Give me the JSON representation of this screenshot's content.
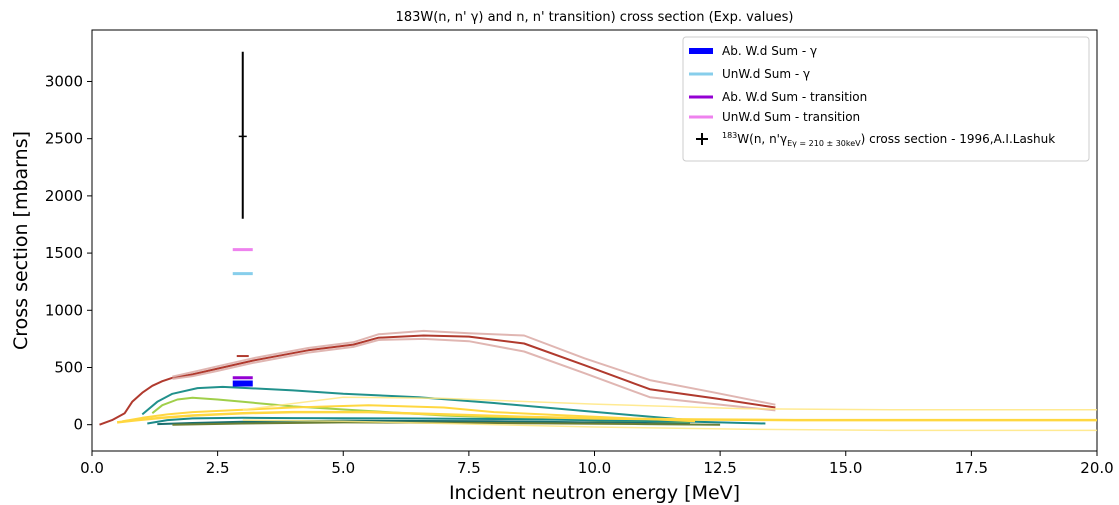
{
  "chart_data": {
    "type": "line",
    "title": "183W(n, n' γ) and n, n' transition) cross section (Exp. values)",
    "xlabel": "Incident neutron energy [MeV]",
    "ylabel": "Cross section [mbarns]",
    "xlim": [
      0,
      20
    ],
    "ylim": [
      -230,
      3450
    ],
    "xticks": [
      0.0,
      2.5,
      5.0,
      7.5,
      10.0,
      12.5,
      15.0,
      17.5,
      20.0
    ],
    "xtick_labels": [
      "0.0",
      "2.5",
      "5.0",
      "7.5",
      "10.0",
      "12.5",
      "15.0",
      "17.5",
      "20.0"
    ],
    "yticks": [
      0,
      500,
      1000,
      1500,
      2000,
      2500,
      3000
    ],
    "ytick_labels": [
      "0",
      "500",
      "1000",
      "1500",
      "2000",
      "2500",
      "3000"
    ],
    "grid": false,
    "legend_position": "top-right",
    "legend": [
      {
        "kind": "bar",
        "label": "Ab. W.d Sum - γ",
        "color": "#0000ff"
      },
      {
        "kind": "line",
        "label": "UnW.d Sum - γ",
        "color": "#87ceeb"
      },
      {
        "kind": "line",
        "label": "Ab. W.d Sum - transition",
        "color": "#9400d3"
      },
      {
        "kind": "line",
        "label": "UnW.d Sum - transition",
        "color": "#ee82ee"
      },
      {
        "kind": "marker",
        "label_prefix": "183",
        "label_main": "W(n, n'γ",
        "label_sub": "Eγ = 210 ± 30keV",
        "label_suffix": ") cross section - 1996,A.I.Lashuk",
        "color": "#000000"
      }
    ],
    "markers": [
      {
        "name": "ab-wd-sum-gamma",
        "x": 3.0,
        "y": 360,
        "color": "#0000ff",
        "thickness": "thick"
      },
      {
        "name": "unwd-sum-gamma",
        "x": 3.0,
        "y": 1320,
        "color": "#87ceeb",
        "thickness": "normal"
      },
      {
        "name": "ab-wd-sum-transition",
        "x": 3.0,
        "y": 410,
        "color": "#9400d3",
        "thickness": "normal"
      },
      {
        "name": "unwd-sum-transition",
        "x": 3.0,
        "y": 1530,
        "color": "#ee82ee",
        "thickness": "normal"
      },
      {
        "name": "brown-marker",
        "x": 3.0,
        "y": 600,
        "color": "#b03a2e",
        "thickness": "thin"
      }
    ],
    "errorbars": [
      {
        "name": "lashuk-1996",
        "x": 3.0,
        "y": 2520,
        "ylow": 1800,
        "yhigh": 3260,
        "color": "#000000"
      }
    ],
    "series": [
      {
        "color": "#b03a2e",
        "width": 2,
        "opacity": 1,
        "x": [
          0.15,
          0.4,
          0.65,
          0.8,
          1.0,
          1.2,
          1.4,
          1.6,
          2.0,
          2.5,
          3.2,
          4.3,
          5.2,
          5.7,
          6.6,
          7.5,
          8.6,
          9.8,
          11.1,
          12.4,
          13.6
        ],
        "y": [
          0,
          40,
          100,
          200,
          280,
          340,
          380,
          410,
          440,
          490,
          560,
          650,
          700,
          760,
          780,
          770,
          710,
          520,
          310,
          230,
          150
        ]
      },
      {
        "color": "#dba9a4",
        "width": 2,
        "opacity": 0.85,
        "x": [
          1.6,
          2.0,
          2.5,
          3.2,
          4.3,
          5.2,
          5.7,
          6.6,
          7.5,
          8.6,
          9.8,
          11.1,
          12.4,
          13.6
        ],
        "y": [
          420,
          460,
          510,
          580,
          670,
          720,
          790,
          820,
          800,
          780,
          580,
          390,
          280,
          175
        ]
      },
      {
        "color": "#dba9a4",
        "width": 2,
        "opacity": 0.85,
        "x": [
          1.6,
          2.0,
          2.5,
          3.2,
          4.3,
          5.2,
          5.7,
          6.6,
          7.5,
          8.6,
          9.8,
          11.1,
          12.4,
          13.6
        ],
        "y": [
          400,
          425,
          470,
          540,
          630,
          680,
          740,
          750,
          730,
          640,
          450,
          240,
          180,
          125
        ]
      },
      {
        "color": "#21918c",
        "width": 2,
        "opacity": 1,
        "x": [
          1.0,
          1.3,
          1.6,
          2.1,
          2.6,
          3.1,
          4.0,
          5.0,
          6.5,
          8.0,
          9.8,
          11.9
        ],
        "y": [
          90,
          200,
          270,
          320,
          330,
          320,
          300,
          270,
          240,
          190,
          120,
          40
        ]
      },
      {
        "color": "#a0cf4a",
        "width": 2,
        "opacity": 1,
        "x": [
          1.2,
          1.4,
          1.7,
          2.0,
          2.5,
          3.0,
          4.0,
          5.5,
          7.0,
          9.0,
          11.0,
          11.9
        ],
        "y": [
          100,
          170,
          220,
          235,
          220,
          200,
          160,
          120,
          80,
          50,
          25,
          15
        ]
      },
      {
        "color": "#1b8a8a",
        "width": 2,
        "opacity": 1,
        "x": [
          1.1,
          1.5,
          2.0,
          3.0,
          4.0,
          6.0,
          8.0,
          10.0,
          12.0,
          13.4
        ],
        "y": [
          10,
          40,
          55,
          60,
          58,
          55,
          50,
          40,
          25,
          10
        ]
      },
      {
        "color": "#1a6e6e",
        "width": 2,
        "opacity": 1,
        "x": [
          1.3,
          2.0,
          3.0,
          5.0,
          8.0,
          11.0,
          11.9
        ],
        "y": [
          5,
          15,
          25,
          35,
          30,
          15,
          5
        ]
      },
      {
        "color": "#6b7f35",
        "width": 2,
        "opacity": 1,
        "x": [
          1.6,
          3.0,
          5.0,
          8.0,
          11.0,
          12.5
        ],
        "y": [
          0,
          10,
          20,
          15,
          5,
          0
        ]
      },
      {
        "color": "#ffd740",
        "width": 2.5,
        "opacity": 1,
        "x": [
          0.5,
          0.9,
          1.4,
          2.0,
          3.0,
          4.0,
          5.5,
          7.0,
          8.5,
          10.0,
          12.0,
          14.0,
          16.0,
          18.0,
          20.0
        ],
        "y": [
          20,
          40,
          60,
          80,
          100,
          110,
          110,
          90,
          70,
          55,
          45,
          40,
          40,
          40,
          40
        ]
      },
      {
        "color": "#ffd740",
        "width": 2,
        "opacity": 1,
        "x": [
          0.6,
          1.0,
          1.5,
          2.0,
          3.0,
          4.0,
          5.5,
          7.0,
          8.0,
          10.0,
          12.0
        ],
        "y": [
          30,
          60,
          90,
          110,
          130,
          150,
          170,
          150,
          110,
          70,
          30
        ]
      },
      {
        "color": "#ffe680",
        "width": 1.5,
        "opacity": 0.85,
        "x": [
          3.0,
          5.0,
          7.0,
          10.0,
          13.0,
          16.0,
          20.0
        ],
        "y": [
          130,
          240,
          230,
          180,
          140,
          130,
          130
        ]
      },
      {
        "color": "#ffe680",
        "width": 1.5,
        "opacity": 0.85,
        "x": [
          3.0,
          5.0,
          7.0,
          10.0,
          13.0,
          16.0,
          20.0
        ],
        "y": [
          40,
          30,
          10,
          -20,
          -40,
          -50,
          -50
        ]
      }
    ]
  }
}
